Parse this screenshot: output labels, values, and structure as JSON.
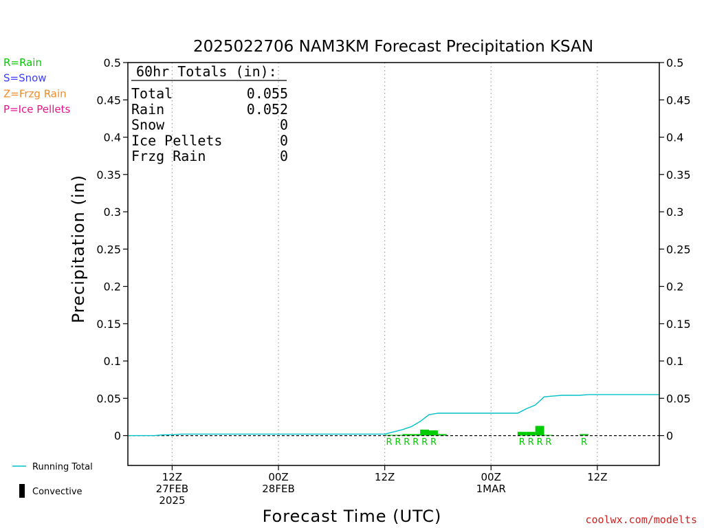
{
  "chart_data": {
    "type": "bar",
    "title": "2025022706 NAM3KM Forecast Precipitation KSAN",
    "xlabel": "Forecast Time (UTC)",
    "ylabel": "Precipitation (in)",
    "ylim": [
      -0.04,
      0.5
    ],
    "yticks": [
      0,
      0.05,
      0.1,
      0.15,
      0.2,
      0.25,
      0.3,
      0.35,
      0.4,
      0.45,
      0.5
    ],
    "ytick_labels": [
      "0",
      "0.05",
      "0.1",
      "0.15",
      "0.2",
      "0.25",
      "0.3",
      "0.35",
      "0.4",
      "0.45",
      "0.5"
    ],
    "xlim_hours": [
      1,
      61
    ],
    "xticks": [
      {
        "hour": 6,
        "lines": [
          "12Z",
          "27FEB",
          "2025"
        ]
      },
      {
        "hour": 18,
        "lines": [
          "00Z",
          "28FEB"
        ]
      },
      {
        "hour": 30,
        "lines": [
          "12Z"
        ]
      },
      {
        "hour": 42,
        "lines": [
          "00Z",
          "1MAR"
        ]
      },
      {
        "hour": 54,
        "lines": [
          "12Z"
        ]
      }
    ],
    "grid": "vertical-dotted",
    "colors": {
      "rain": "#00cc00",
      "running_total": "#00c0c8",
      "convective": "#000000"
    },
    "precip_bars": [
      {
        "hour": 31,
        "value": 0.001,
        "type": "R"
      },
      {
        "hour": 32,
        "value": 0.001,
        "type": "R"
      },
      {
        "hour": 33,
        "value": 0.002,
        "type": "R"
      },
      {
        "hour": 34,
        "value": 0.002,
        "type": "R"
      },
      {
        "hour": 35,
        "value": 0.008,
        "type": "R"
      },
      {
        "hour": 36,
        "value": 0.007,
        "type": "R"
      },
      {
        "hour": 37,
        "value": 0.002,
        "type": "R"
      },
      {
        "hour": 46,
        "value": 0.005,
        "type": "R"
      },
      {
        "hour": 47,
        "value": 0.005,
        "type": "R"
      },
      {
        "hour": 48,
        "value": 0.013,
        "type": "R"
      },
      {
        "hour": 49,
        "value": 0.001,
        "type": "R"
      },
      {
        "hour": 53,
        "value": 0.002,
        "type": "R"
      }
    ],
    "running_total": {
      "hours": [
        1,
        2,
        3,
        4,
        5,
        6,
        7,
        8,
        30,
        31,
        32,
        33,
        34,
        35,
        36,
        37,
        38,
        45,
        46,
        47,
        48,
        49,
        50,
        51,
        52,
        53,
        54,
        61
      ],
      "values": [
        0.0,
        0.0,
        0.0,
        0.0,
        0.001,
        0.001,
        0.002,
        0.002,
        0.002,
        0.005,
        0.008,
        0.012,
        0.019,
        0.028,
        0.03,
        0.03,
        0.03,
        0.03,
        0.036,
        0.041,
        0.052,
        0.053,
        0.054,
        0.054,
        0.054,
        0.055,
        0.055,
        0.055
      ]
    },
    "ptype_labels": [
      {
        "hour": 31,
        "text": "R"
      },
      {
        "hour": 32,
        "text": "R"
      },
      {
        "hour": 33,
        "text": "R"
      },
      {
        "hour": 34,
        "text": "R"
      },
      {
        "hour": 35,
        "text": "R"
      },
      {
        "hour": 36,
        "text": "R"
      },
      {
        "hour": 46,
        "text": "R"
      },
      {
        "hour": 47,
        "text": "R"
      },
      {
        "hour": 48,
        "text": "R"
      },
      {
        "hour": 49,
        "text": "R"
      },
      {
        "hour": 53,
        "text": "R"
      }
    ],
    "totals_box": {
      "header": "60hr Totals (in):",
      "rows": [
        {
          "label": "Total",
          "value": "0.055"
        },
        {
          "label": "Rain",
          "value": "0.052"
        },
        {
          "label": "Snow",
          "value": "0"
        },
        {
          "label": "Ice Pellets",
          "value": "0"
        },
        {
          "label": "Frzg Rain",
          "value": "0"
        }
      ]
    },
    "ptype_legend": [
      {
        "text": "R=Rain",
        "color": "#00cc00"
      },
      {
        "text": "S=Snow",
        "color": "#3c3cff"
      },
      {
        "text": "Z=Frzg Rain",
        "color": "#f08c28"
      },
      {
        "text": "P=Ice Pellets",
        "color": "#e6148c"
      }
    ],
    "series_legend": [
      {
        "text": "Running Total",
        "color": "#00c0c8",
        "style": "line"
      },
      {
        "text": "Convective",
        "color": "#000000",
        "style": "box"
      }
    ]
  },
  "credit": {
    "text": "coolwx.com/modelts",
    "color": "#d02020"
  }
}
